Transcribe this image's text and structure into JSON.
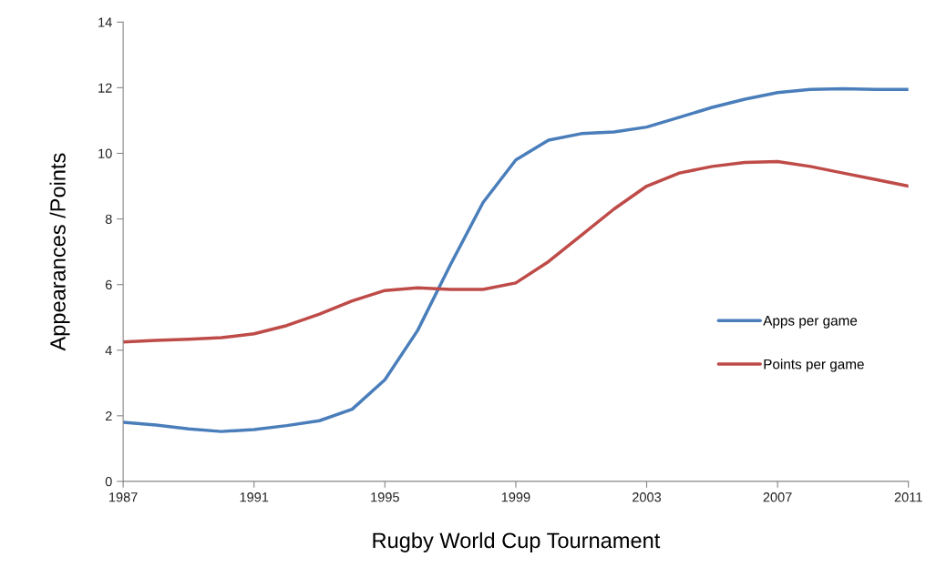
{
  "chart_data": {
    "type": "line",
    "xlabel": "Rugby World Cup Tournament",
    "ylabel": "Appearances /Points",
    "x": [
      1987,
      1988,
      1989,
      1990,
      1991,
      1992,
      1993,
      1994,
      1995,
      1996,
      1997,
      1998,
      1999,
      2000,
      2001,
      2002,
      2003,
      2004,
      2005,
      2006,
      2007,
      2008,
      2009,
      2010,
      2011
    ],
    "series": [
      {
        "name": "Apps per game",
        "color": "#4a7ebb",
        "values": [
          1.8,
          1.72,
          1.6,
          1.52,
          1.58,
          1.7,
          1.85,
          2.2,
          3.1,
          4.6,
          6.6,
          8.5,
          9.8,
          10.4,
          10.6,
          10.65,
          10.8,
          11.1,
          11.4,
          11.65,
          11.85,
          11.95,
          11.97,
          11.95,
          11.95
        ]
      },
      {
        "name": "Points per game",
        "color": "#be4b48",
        "values": [
          4.25,
          4.3,
          4.33,
          4.38,
          4.5,
          4.75,
          5.1,
          5.5,
          5.82,
          5.9,
          5.85,
          5.85,
          6.05,
          6.7,
          7.5,
          8.3,
          9.0,
          9.4,
          9.6,
          9.72,
          9.75,
          9.6,
          9.4,
          9.2,
          9.0
        ]
      }
    ],
    "xlim": [
      1987,
      2011
    ],
    "xticks": [
      1987,
      1991,
      1995,
      1999,
      2003,
      2007,
      2011
    ],
    "ylim": [
      0,
      14
    ],
    "yticks": [
      0,
      2,
      4,
      6,
      8,
      10,
      12,
      14
    ],
    "grid": false,
    "legend": "right",
    "marker": "none",
    "line_style": "solid"
  }
}
